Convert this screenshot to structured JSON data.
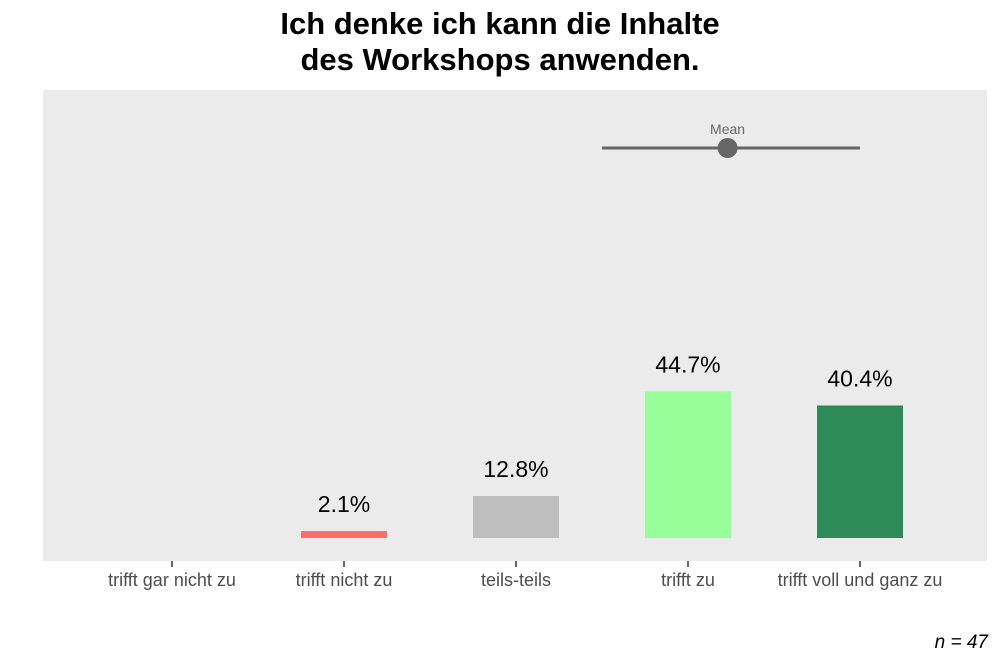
{
  "chart_data": {
    "type": "bar",
    "title_lines": [
      "Ich denke ich kann die Inhalte",
      "des Workshops anwenden."
    ],
    "categories": [
      "trifft gar nicht zu",
      "trifft nicht zu",
      "teils-teils",
      "trifft zu",
      "trifft voll und ganz zu"
    ],
    "values": [
      0,
      2.1,
      12.8,
      44.7,
      40.4
    ],
    "data_labels": [
      "",
      "2.1%",
      "12.8%",
      "44.7%",
      "40.4%"
    ],
    "colors": [
      "#8B0000",
      "#FF6B6B",
      "#BEBEBE",
      "#98FF98",
      "#2E8B57"
    ],
    "ylim": [
      0,
      50
    ],
    "xlabel": "",
    "ylabel": "",
    "grid": false,
    "mean": {
      "label": "Mean",
      "value": 4.23,
      "range": [
        3.5,
        5
      ],
      "color": "#666666"
    },
    "panel_background": "#EBEBEB",
    "caption": "n = 47"
  }
}
